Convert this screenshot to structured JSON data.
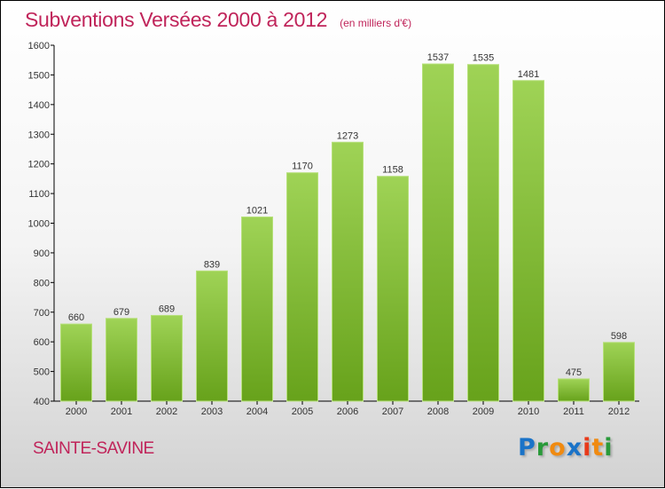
{
  "chart_data": {
    "type": "bar",
    "title": "Subventions Versées 2000 à 2012",
    "subtitle": "(en milliers d'€)",
    "categories": [
      "2000",
      "2001",
      "2002",
      "2003",
      "2004",
      "2005",
      "2006",
      "2007",
      "2008",
      "2009",
      "2010",
      "2011",
      "2012"
    ],
    "values": [
      660,
      679,
      689,
      839,
      1021,
      1170,
      1273,
      1158,
      1537,
      1535,
      1481,
      475,
      598
    ],
    "ylim": [
      400,
      1600
    ],
    "yticks": [
      400,
      500,
      600,
      700,
      800,
      900,
      1000,
      1100,
      1200,
      1300,
      1400,
      1500,
      1600
    ],
    "xlabel": "",
    "ylabel": "",
    "bar_color": "#8cc63f",
    "title_color": "#c0245a"
  },
  "footer": {
    "city": "SAINTE-SAVINE",
    "logo": "Proxiti"
  }
}
